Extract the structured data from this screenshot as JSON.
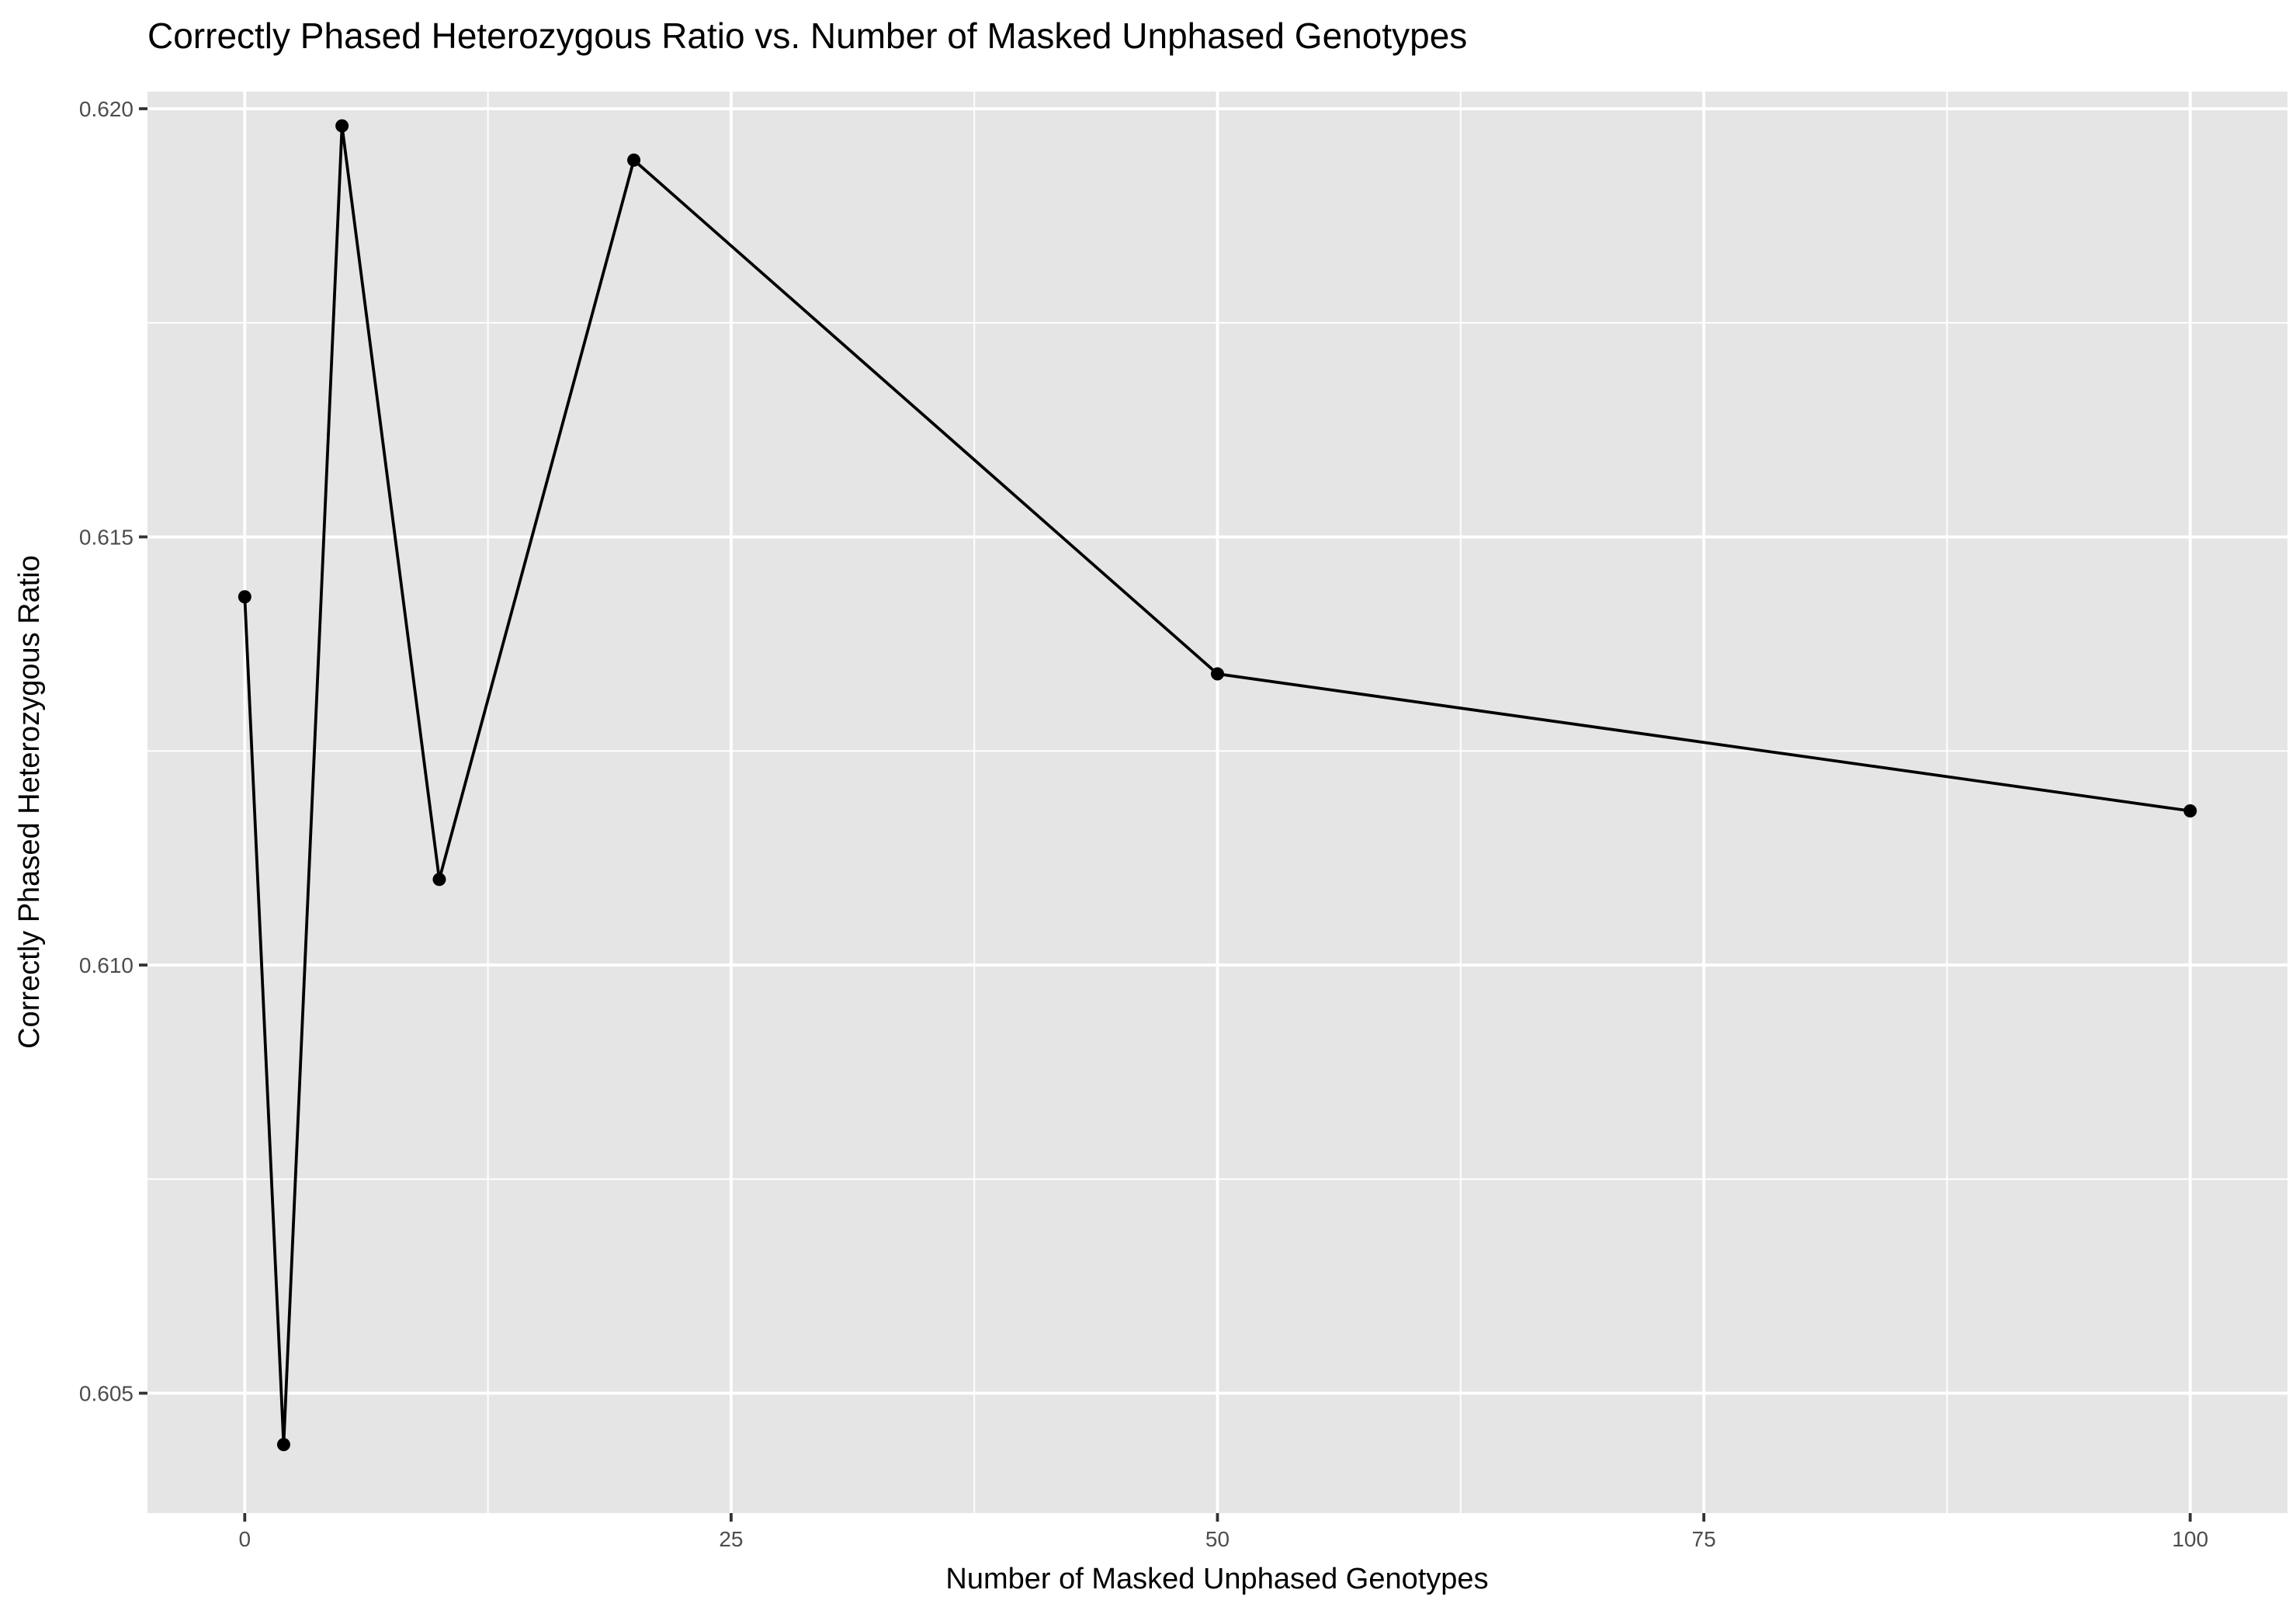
{
  "chart_data": {
    "type": "line",
    "title": "Correctly Phased Heterozygous Ratio vs. Number of Masked Unphased Genotypes",
    "xlabel": "Number of Masked Unphased Genotypes",
    "ylabel": "Correctly Phased Heterozygous Ratio",
    "xlim": [
      -5,
      105
    ],
    "ylim": [
      0.6036,
      0.6202
    ],
    "x_major_ticks": [
      0,
      25,
      50,
      75,
      100
    ],
    "x_tick_labels": [
      "0",
      "25",
      "50",
      "75",
      "100"
    ],
    "x_minor_ticks": [
      12.5,
      37.5,
      62.5,
      87.5
    ],
    "y_major_ticks": [
      0.605,
      0.61,
      0.615,
      0.62
    ],
    "y_tick_labels": [
      "0.605",
      "0.610",
      "0.615",
      "0.620"
    ],
    "y_minor_ticks": [
      0.6075,
      0.6125,
      0.6175
    ],
    "grid": true,
    "legend": "none",
    "colors": {
      "panel": "#e5e5e5",
      "grid": "#ffffff",
      "series": "#000000",
      "tick_text": "#4d4d4d"
    },
    "series": [
      {
        "x": [
          0,
          2,
          5,
          10,
          20,
          50,
          100
        ],
        "y": [
          0.6143,
          0.6044,
          0.6198,
          0.611,
          0.6194,
          0.6134,
          0.6118
        ]
      }
    ]
  }
}
